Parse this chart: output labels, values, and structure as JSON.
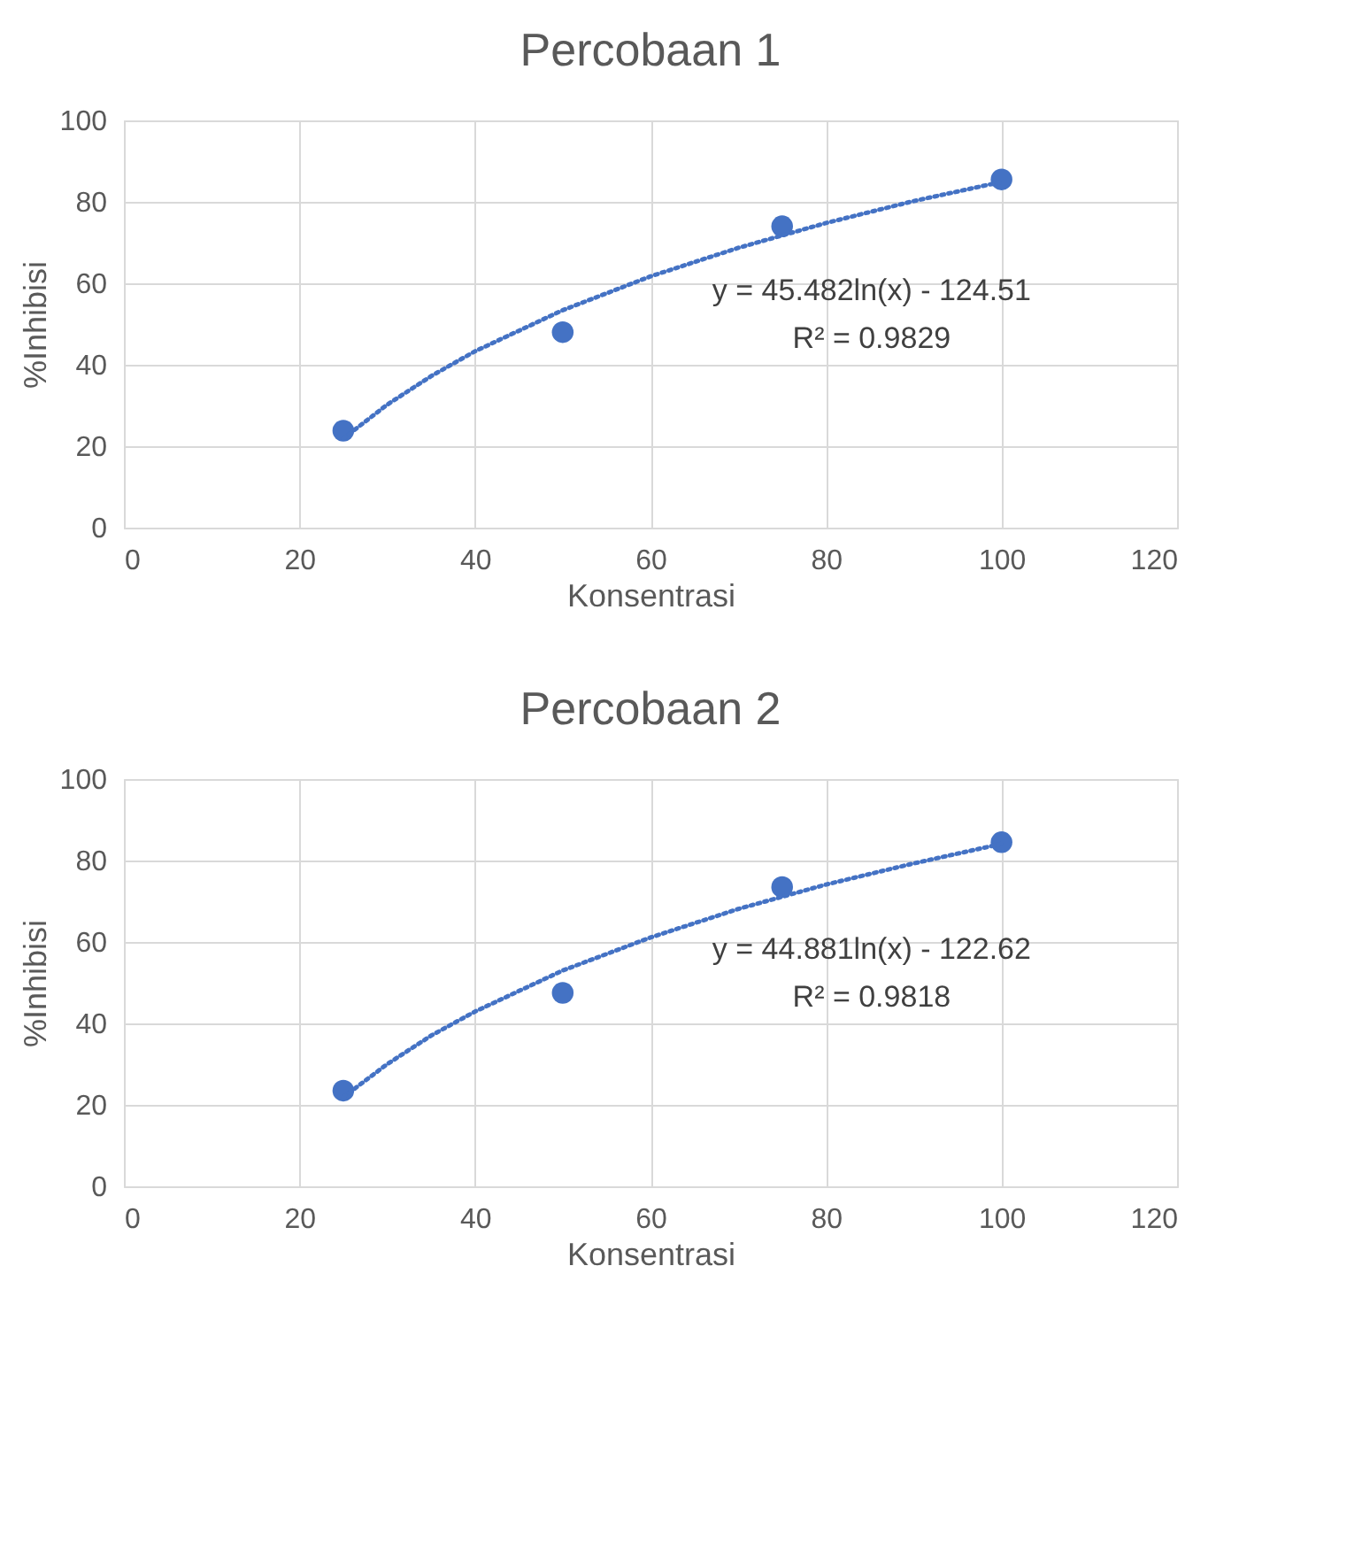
{
  "chart_data": [
    {
      "type": "scatter",
      "title": "Percobaan 1",
      "xlabel": "Konsentrasi",
      "ylabel": "%Inhibisi",
      "series": [
        {
          "type": "scatter",
          "color": "#4472c4",
          "marker": "circle",
          "x": [
            25,
            50,
            75,
            100
          ],
          "values": [
            23.8,
            48.0,
            74.0,
            85.5
          ]
        },
        {
          "type": "line",
          "color": "#4472c4",
          "line_style": "dotted",
          "marker": "none",
          "x": [
            25,
            30,
            35,
            40,
            50,
            60,
            70,
            80,
            90,
            100
          ],
          "values": [
            21.9,
            30.2,
            37.2,
            43.3,
            53.4,
            61.7,
            68.7,
            74.8,
            80.2,
            84.9
          ]
        }
      ],
      "annotations": [
        "y = 45.482ln(x) - 124.51",
        "R² = 0.9829"
      ],
      "xlim": [
        0,
        120
      ],
      "xticks": [
        0,
        20,
        40,
        60,
        80,
        100,
        120
      ],
      "ylim": [
        0,
        100
      ],
      "yticks": [
        0,
        20,
        40,
        60,
        80,
        100
      ],
      "grid": true
    },
    {
      "type": "scatter",
      "title": "Percobaan 2",
      "xlabel": "Konsentrasi",
      "ylabel": "%Inhibisi",
      "series": [
        {
          "type": "scatter",
          "color": "#4472c4",
          "marker": "circle",
          "x": [
            25,
            50,
            75,
            100
          ],
          "values": [
            23.5,
            47.5,
            73.5,
            84.5
          ]
        },
        {
          "type": "line",
          "color": "#4472c4",
          "line_style": "dotted",
          "marker": "none",
          "x": [
            25,
            30,
            35,
            40,
            50,
            60,
            70,
            80,
            90,
            100
          ],
          "values": [
            21.9,
            30.0,
            37.0,
            42.9,
            53.0,
            61.1,
            68.1,
            74.1,
            79.3,
            84.1
          ]
        }
      ],
      "annotations": [
        "y = 44.881ln(x) - 122.62",
        "R² = 0.9818"
      ],
      "xlim": [
        0,
        120
      ],
      "xticks": [
        0,
        20,
        40,
        60,
        80,
        100,
        120
      ],
      "ylim": [
        0,
        100
      ],
      "yticks": [
        0,
        20,
        40,
        60,
        80,
        100
      ],
      "grid": true
    }
  ]
}
